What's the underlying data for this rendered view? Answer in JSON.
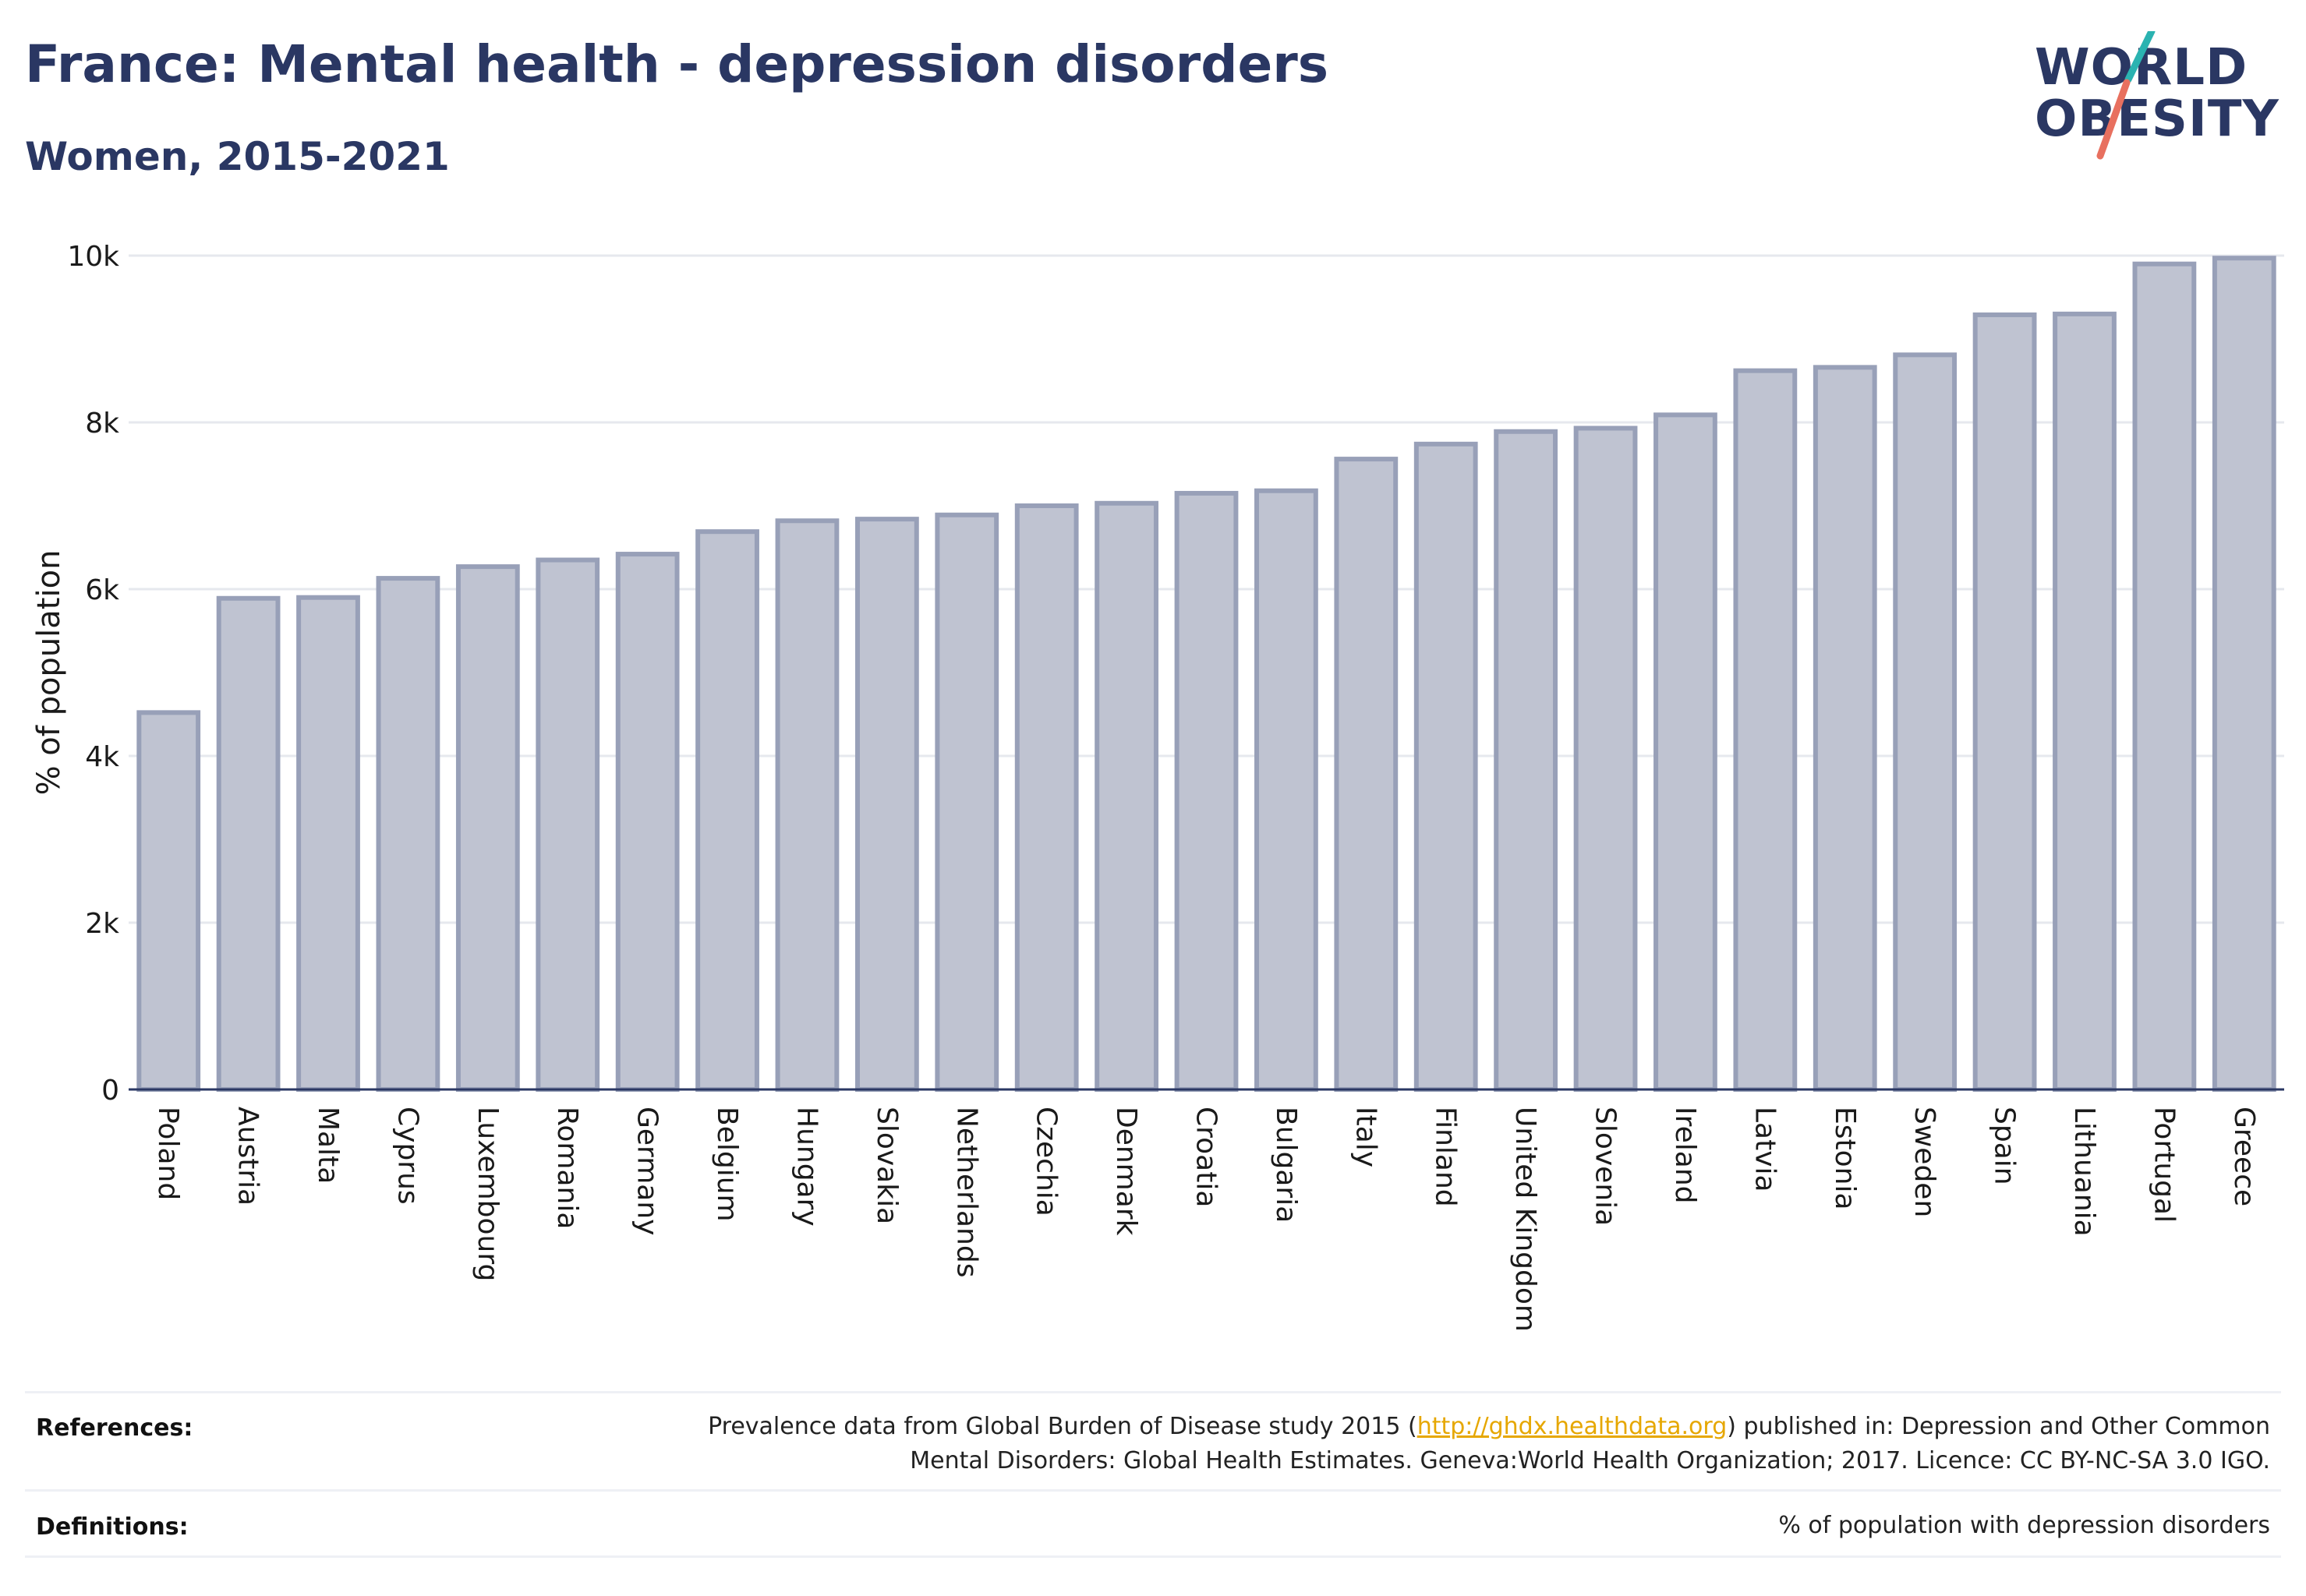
{
  "header": {
    "title": "France: Mental health - depression disorders",
    "subtitle": "Women, 2015-2021"
  },
  "logo": {
    "line1": "WORLD",
    "line2": "OBESITY",
    "colors": {
      "text": "#2a3763",
      "slash_top": "#2bb3b1",
      "slash_bottom": "#e8705f"
    }
  },
  "chart_data": {
    "type": "bar",
    "title": "France: Mental health - depression disorders",
    "subtitle": "Women, 2015-2021",
    "xlabel": "",
    "ylabel": "% of population",
    "ylim": [
      0,
      10000
    ],
    "yticks": [
      0,
      2000,
      4000,
      6000,
      8000,
      10000
    ],
    "ytick_labels": [
      "0",
      "2k",
      "4k",
      "6k",
      "8k",
      "10k"
    ],
    "grid": true,
    "legend": "none",
    "bar_color": "#bfc3d1",
    "bar_edge_color": "#98a0b8",
    "categories": [
      "Poland",
      "Austria",
      "Malta",
      "Cyprus",
      "Luxembourg",
      "Romania",
      "Germany",
      "Belgium",
      "Hungary",
      "Slovakia",
      "Netherlands",
      "Czechia",
      "Denmark",
      "Croatia",
      "Bulgaria",
      "Italy",
      "Finland",
      "United Kingdom",
      "Slovenia",
      "Ireland",
      "Latvia",
      "Estonia",
      "Sweden",
      "Spain",
      "Lithuania",
      "Portugal",
      "Greece"
    ],
    "values": [
      4520,
      5890,
      5900,
      6130,
      6270,
      6350,
      6420,
      6690,
      6820,
      6840,
      6890,
      7000,
      7030,
      7150,
      7180,
      7560,
      7740,
      7890,
      7930,
      8090,
      8620,
      8660,
      8810,
      9290,
      9300,
      9900,
      9970
    ]
  },
  "footer": {
    "references_label": "References:",
    "references_text_1": "Prevalence data from Global Burden of Disease study 2015 (",
    "references_link": "http://ghdx.healthdata.org",
    "references_text_2": ") published in: Depression and Other Common",
    "references_text_3": "Mental Disorders: Global Health Estimates. Geneva:World Health Organization; 2017. Licence: CC BY-NC-SA 3.0 IGO.",
    "definitions_label": "Definitions:",
    "definitions_text": "% of population with depression disorders"
  }
}
